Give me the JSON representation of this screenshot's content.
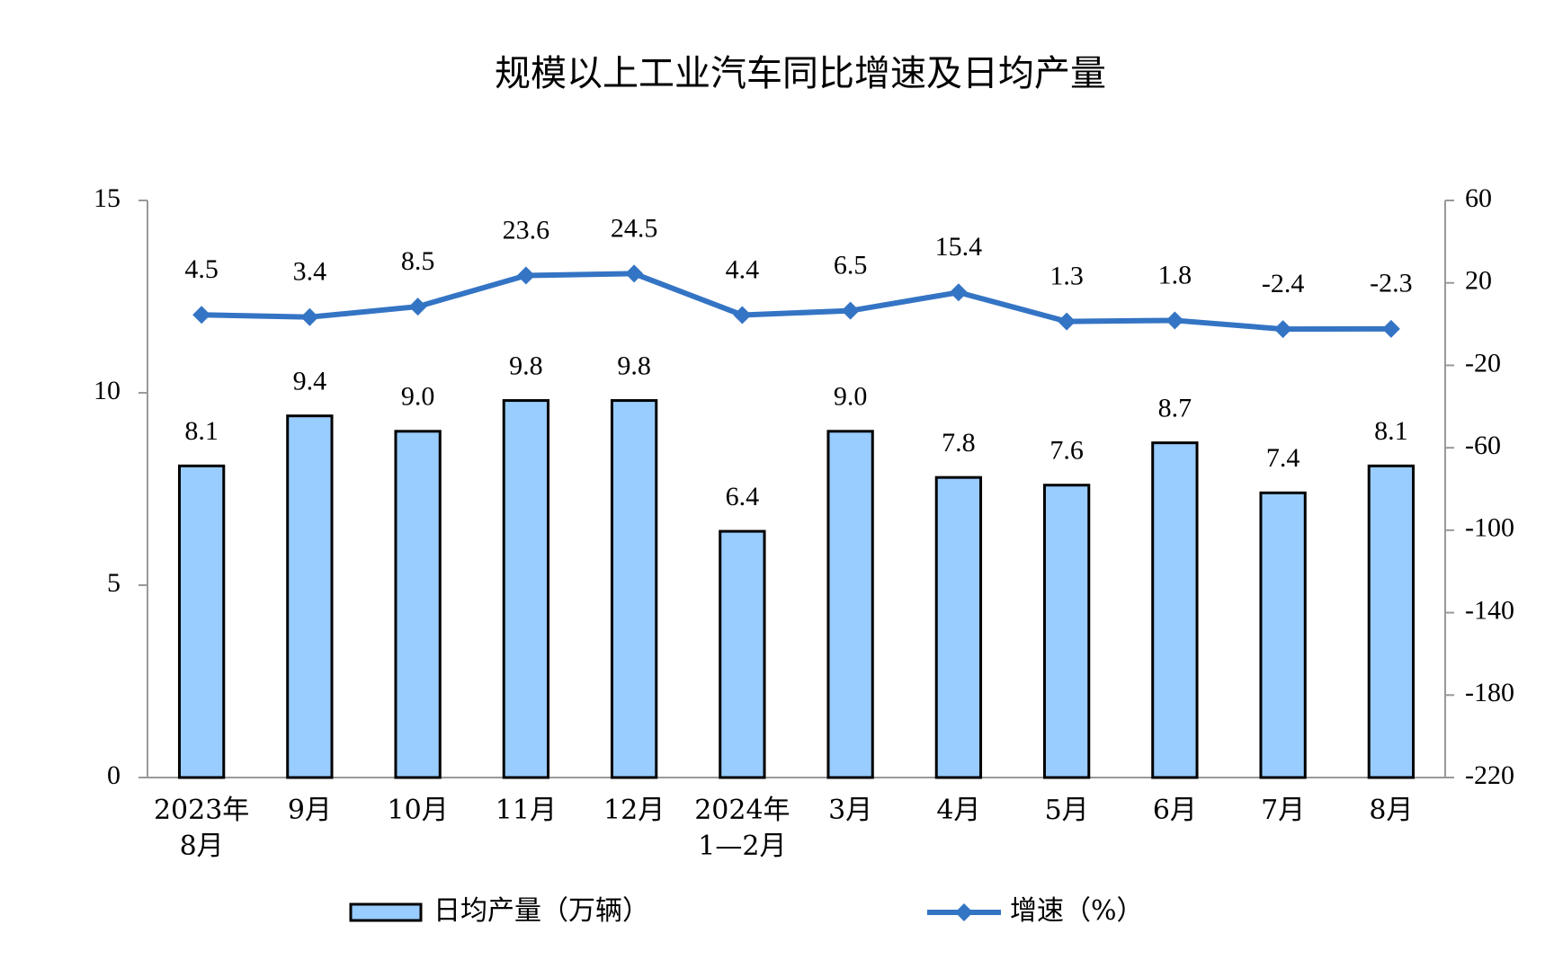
{
  "chart_data": {
    "type": "bar",
    "title": "规模以上工业汽车同比增速及日均产量",
    "categories": [
      "2023年\n8月",
      "9月",
      "10月",
      "11月",
      "12月",
      "2024年\n1—2月",
      "3月",
      "4月",
      "5月",
      "6月",
      "7月",
      "8月"
    ],
    "series": [
      {
        "name": "日均产量（万辆）",
        "color": "#99ccff",
        "type": "bar",
        "values": [
          8.1,
          9.4,
          9.0,
          9.8,
          9.8,
          6.4,
          9.0,
          7.8,
          7.6,
          8.7,
          7.4,
          8.1
        ],
        "value_labels": [
          "8.1",
          "9.4",
          "9.0",
          "9.8",
          "9.8",
          "6.4",
          "9.0",
          "7.8",
          "7.6",
          "8.7",
          "7.4",
          "8.1"
        ]
      },
      {
        "name": "增速（%）",
        "color": "#3474c4",
        "type": "line",
        "axis": "y2",
        "values": [
          4.5,
          3.4,
          8.5,
          23.6,
          24.5,
          4.4,
          6.5,
          15.4,
          1.3,
          1.8,
          -2.4,
          -2.3
        ]
      }
    ],
    "ylim": [
      0,
      15
    ],
    "yticks": [
      0,
      5,
      10,
      15
    ],
    "y2lim": [
      -220,
      60
    ],
    "y2ticks": [
      -220,
      -180,
      -140,
      -100,
      -60,
      -20,
      20,
      60
    ],
    "grid": false,
    "legend": "bottom"
  }
}
